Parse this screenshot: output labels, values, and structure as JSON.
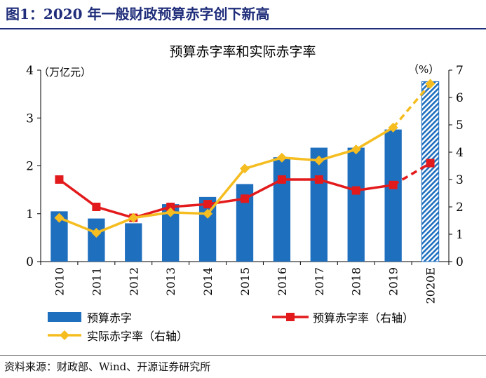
{
  "figure": {
    "title": "图1：2020 年一般财政预算赤字创下新高",
    "source": "资料来源：财政部、Wind、开源证券研究所"
  },
  "colors": {
    "title": "#1f2d7a",
    "bar": "#1f6fbf",
    "bar_hatch_bg": "#ffffff",
    "budget_rate": "#e31a1c",
    "actual_rate": "#f5bd1f",
    "axis": "#000000"
  },
  "chart_data": {
    "type": "bar+line",
    "title": "预算赤字率和实际赤字率",
    "y_left_unit": "（万亿元）",
    "y_right_unit": "（%）",
    "ylim_left": [
      0,
      4
    ],
    "ylim_right": [
      0,
      7
    ],
    "yticks_left": [
      "0",
      "1",
      "2",
      "3",
      "4"
    ],
    "yticks_right": [
      "0",
      "1",
      "2",
      "3",
      "4",
      "5",
      "6",
      "7"
    ],
    "categories": [
      "2010",
      "2011",
      "2012",
      "2013",
      "2014",
      "2015",
      "2016",
      "2017",
      "2018",
      "2019",
      "2020E"
    ],
    "grid": false,
    "legend_position": "bottom",
    "series": [
      {
        "name": "预算赤字",
        "type": "bar",
        "axis": "left",
        "values": [
          1.05,
          0.9,
          0.8,
          1.2,
          1.35,
          1.62,
          2.18,
          2.38,
          2.38,
          2.76,
          3.76
        ],
        "hatched_last": true
      },
      {
        "name": "预算赤字率（右轴）",
        "type": "line",
        "axis": "right",
        "marker": "square",
        "values": [
          3.0,
          2.0,
          1.6,
          2.0,
          2.1,
          2.3,
          3.0,
          3.0,
          2.6,
          2.8,
          3.6
        ],
        "dashed_last": true
      },
      {
        "name": "实际赤字率（右轴）",
        "type": "line",
        "axis": "right",
        "marker": "diamond",
        "values": [
          1.6,
          1.05,
          1.6,
          1.8,
          1.75,
          3.4,
          3.8,
          3.7,
          4.1,
          4.9,
          6.5
        ],
        "dashed_last": true
      }
    ]
  }
}
